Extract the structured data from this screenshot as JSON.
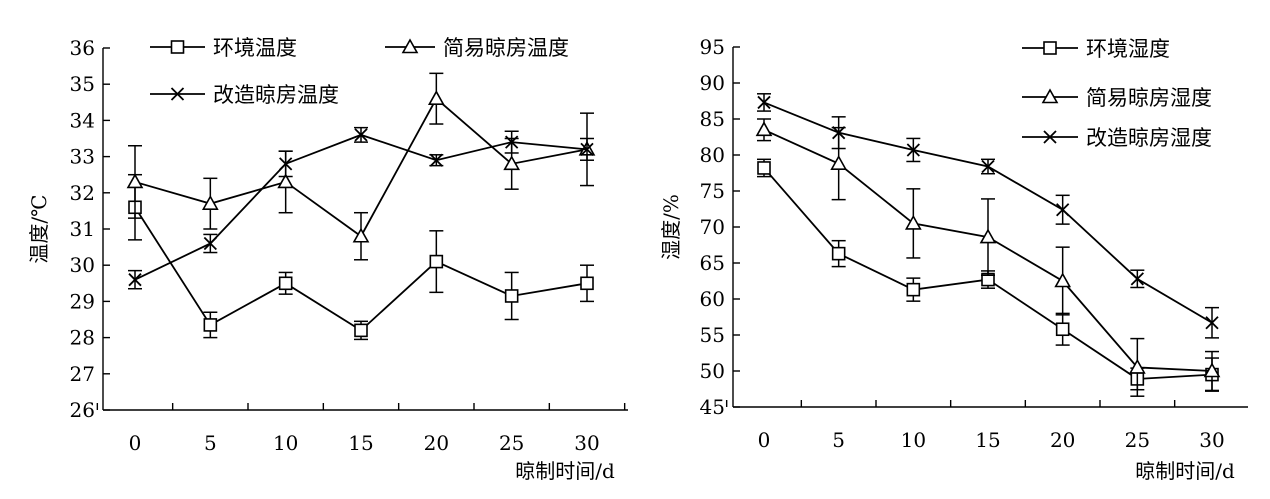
{
  "figure": {
    "panels": [
      {
        "xlabel": "晾制时间/d",
        "ylabel": "温度/℃"
      },
      {
        "xlabel": "晾制时间/d",
        "ylabel": "湿度/%"
      }
    ]
  },
  "chart_data": [
    {
      "type": "line",
      "title": "",
      "xlabel": "晾制时间/d",
      "ylabel": "温度/℃",
      "x": [
        0,
        5,
        10,
        15,
        20,
        25,
        30
      ],
      "ylim": [
        26,
        36
      ],
      "yticks": [
        26,
        27,
        28,
        29,
        30,
        31,
        32,
        33,
        34,
        35,
        36
      ],
      "grid": false,
      "legend_position": "top",
      "series": [
        {
          "name": "环境温度",
          "marker": "square",
          "values": [
            31.6,
            28.35,
            29.5,
            28.2,
            30.1,
            29.15,
            29.5
          ],
          "errors": [
            0.9,
            0.35,
            0.3,
            0.25,
            0.85,
            0.65,
            0.5
          ]
        },
        {
          "name": "简易晾房温度",
          "marker": "triangle",
          "values": [
            32.3,
            31.7,
            32.3,
            30.8,
            34.6,
            32.8,
            33.2
          ],
          "errors": [
            1.0,
            0.7,
            0.85,
            0.65,
            0.7,
            0.7,
            1.0
          ]
        },
        {
          "name": "改造晾房温度",
          "marker": "x",
          "values": [
            29.6,
            30.6,
            32.8,
            33.6,
            32.9,
            33.4,
            33.2
          ],
          "errors": [
            0.25,
            0.25,
            0.35,
            0.2,
            0.15,
            0.3,
            0.3
          ]
        }
      ]
    },
    {
      "type": "line",
      "title": "",
      "xlabel": "晾制时间/d",
      "ylabel": "湿度/%",
      "x": [
        0,
        5,
        10,
        15,
        20,
        25,
        30
      ],
      "ylim": [
        45,
        95
      ],
      "yticks": [
        45,
        50,
        55,
        60,
        65,
        70,
        75,
        80,
        85,
        90,
        95
      ],
      "grid": false,
      "legend_position": "top-right",
      "series": [
        {
          "name": "环境湿度",
          "marker": "square",
          "values": [
            78.2,
            66.3,
            61.3,
            62.7,
            55.8,
            48.9,
            49.5
          ],
          "errors": [
            1.2,
            1.8,
            1.6,
            1.2,
            2.2,
            1.5,
            2.3
          ]
        },
        {
          "name": "简易晾房湿度",
          "marker": "triangle",
          "values": [
            83.5,
            78.8,
            70.5,
            68.6,
            62.5,
            50.5,
            50.0
          ],
          "errors": [
            1.5,
            5.0,
            4.8,
            5.3,
            4.7,
            4.0,
            2.7
          ]
        },
        {
          "name": "改造晾房湿度",
          "marker": "x",
          "values": [
            87.3,
            83.1,
            80.7,
            78.4,
            72.4,
            62.8,
            56.7
          ],
          "errors": [
            1.2,
            2.2,
            1.6,
            1.0,
            2.0,
            1.2,
            2.1
          ]
        }
      ]
    }
  ]
}
